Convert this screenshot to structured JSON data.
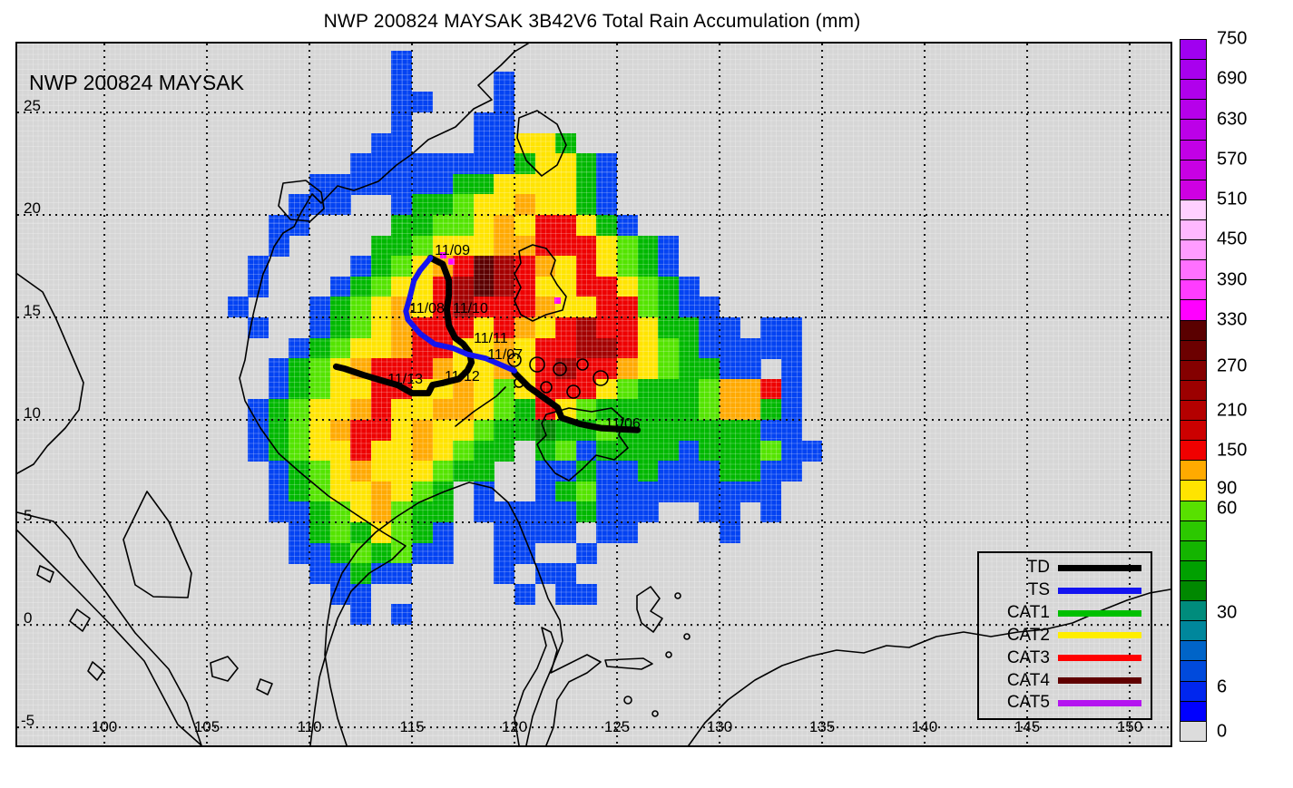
{
  "title": "NWP 200824 MAYSAK 3B42V6 Total Rain Accumulation (mm)",
  "map_label": "NWP 200824 MAYSAK",
  "axes": {
    "lon_min": 95.75,
    "lon_max": 151.99,
    "lat_min": -5.88,
    "lat_max": 28.36,
    "lon_ticks": [
      100,
      105,
      110,
      115,
      120,
      125,
      130,
      135,
      140,
      145,
      150
    ],
    "lat_ticks": [
      25,
      20,
      15,
      10,
      5,
      0,
      -5
    ]
  },
  "colorbar": {
    "cells": [
      "#a000f0",
      "#a800ee",
      "#b000ec",
      "#b600ea",
      "#bc00e8",
      "#c200e6",
      "#c800e4",
      "#ce00e2",
      "#ffd0ff",
      "#ffb8ff",
      "#ff9cff",
      "#ff70ff",
      "#ff3cff",
      "#ff00ff",
      "#5a0000",
      "#6c0000",
      "#840000",
      "#9c0000",
      "#b40000",
      "#cc0000",
      "#f00000",
      "#ffaa00",
      "#ffe400",
      "#58e000",
      "#2cc800",
      "#14b400",
      "#00a000",
      "#008800",
      "#008c7c",
      "#00879c",
      "#0064c8",
      "#004adc",
      "#0026ee",
      "#0000ff",
      "#dcdcdc"
    ],
    "ticks": [
      {
        "label": "750",
        "pos": 0
      },
      {
        "label": "690",
        "pos": 2
      },
      {
        "label": "630",
        "pos": 4
      },
      {
        "label": "570",
        "pos": 6
      },
      {
        "label": "510",
        "pos": 8
      },
      {
        "label": "450",
        "pos": 10
      },
      {
        "label": "390",
        "pos": 12
      },
      {
        "label": "330",
        "pos": 14
      },
      {
        "label": "270",
        "pos": 16.3
      },
      {
        "label": "210",
        "pos": 18.5
      },
      {
        "label": "150",
        "pos": 20.5
      },
      {
        "label": "90",
        "pos": 22.4
      },
      {
        "label": "60",
        "pos": 23.4
      },
      {
        "label": "30",
        "pos": 28.6
      },
      {
        "label": "6",
        "pos": 32.3
      },
      {
        "label": "0",
        "pos": 34.5
      }
    ]
  },
  "legend": {
    "items": [
      {
        "label": "TD",
        "color": "#000000"
      },
      {
        "label": "TS",
        "color": "#1414f0"
      },
      {
        "label": "CAT1",
        "color": "#00c000"
      },
      {
        "label": "CAT2",
        "color": "#ffee00"
      },
      {
        "label": "CAT3",
        "color": "#ff0000"
      },
      {
        "label": "CAT4",
        "color": "#600000"
      },
      {
        "label": "CAT5",
        "color": "#b414f0"
      }
    ]
  },
  "chart_data": {
    "type": "heatmap",
    "title": "NWP 200824 MAYSAK 3B42V6 Total Rain Accumulation (mm)",
    "units": "mm",
    "grid": {
      "lon_west": 106,
      "lat_north": 28,
      "cell_deg": 1,
      "rows": [
        "........b.....................",
        "........b....b................",
        "........bb...b................",
        "........b...bb................",
        ".......bb...bbyyg.............",
        "......bbbbbbbbgyygb...........",
        "....bbbbbbbggyyyygb...........",
        "...bbb..bgglyyoyygb...........",
        "..bb....ggllyoyrrygb..........",
        "..b....gglyyyoorrrylgb........",
        ".b....bglyorMRroyrylgb........",
        ".b...bglyyrRMRryyrrylgb.......",
        "b...bglyoyrRrrroyyrrlgbb......",
        ".b..bglyorrryroyrRrryggbb.bb..",
        "...bglyyorryyoyrrRRrylgbbbbb..",
        "..bglyorrroyyoyrRrroylggbb.b..",
        "..bglyyrryyoylyrrrylgggloorb..",
        ".bglyyoryyooylgrylgggggloogb..",
        ".bglyorryoyylggGgglgggggggbb..",
        ".bglyyryyoylgg.glbggggbggglbb.",
        "..bglyoyyylgg..bbgbbgbbbggbb..",
        "..bglyyoylg.b..bglbbbbbbbbb...",
        "..bbglyolgg.bbbbbgbbb..bb.b...",
        "...bglgylgb..bbbb.bb....b.....",
        "...bbglglbb..bb..b............",
        "....bbgbb....b.bb.............",
        ".....bb.......b.bb............",
        "......b.b.....................",
        "..............................",
        ".............................."
      ]
    },
    "palette": {
      "b": "#0443f2",
      "g": "#00b800",
      "G": "#008400",
      "l": "#54e400",
      "y": "#ffe402",
      "o": "#ffaa02",
      "r": "#ee0202",
      "R": "#a40000",
      "M": "#5c0000"
    },
    "magenta_specks": {
      "color": "#ff00ff",
      "points": [
        [
          116.5,
          18.05
        ],
        [
          116.9,
          17.75
        ],
        [
          122.1,
          15.85
        ]
      ]
    },
    "track": {
      "segments": [
        {
          "intensity": "TD",
          "color": "#000000",
          "points": [
            [
              126.0,
              9.5
            ],
            [
              124.2,
              9.6
            ],
            [
              123.2,
              9.8
            ],
            [
              122.3,
              10.1
            ],
            [
              122.1,
              10.6
            ],
            [
              121.4,
              11.1
            ],
            [
              120.7,
              11.6
            ],
            [
              120.0,
              12.3
            ]
          ]
        },
        {
          "intensity": "TD",
          "color": "#000000",
          "points": [
            [
              115.9,
              17.9
            ],
            [
              116.5,
              17.6
            ],
            [
              116.8,
              16.8
            ],
            [
              116.8,
              16.1
            ],
            [
              116.7,
              15.4
            ],
            [
              116.8,
              14.6
            ],
            [
              117.1,
              14.0
            ],
            [
              117.5,
              13.7
            ],
            [
              117.8,
              13.3
            ],
            [
              117.9,
              12.8
            ],
            [
              117.7,
              12.4
            ],
            [
              117.3,
              12.0
            ],
            [
              116.5,
              11.8
            ],
            [
              116.0,
              11.7
            ],
            [
              115.8,
              11.3
            ],
            [
              115.0,
              11.3
            ],
            [
              114.3,
              11.7
            ],
            [
              113.6,
              11.9
            ],
            [
              112.6,
              12.2
            ],
            [
              111.7,
              12.5
            ],
            [
              111.3,
              12.6
            ]
          ]
        },
        {
          "intensity": "TS",
          "color": "#1414f0",
          "points": [
            [
              120.0,
              12.4
            ],
            [
              118.6,
              13.0
            ],
            [
              117.7,
              13.2
            ],
            [
              117.0,
              13.5
            ],
            [
              116.1,
              13.7
            ],
            [
              115.4,
              14.2
            ],
            [
              114.8,
              14.9
            ],
            [
              114.7,
              15.3
            ],
            [
              114.9,
              16.0
            ],
            [
              115.1,
              16.8
            ],
            [
              115.4,
              17.3
            ],
            [
              115.9,
              17.9
            ]
          ]
        }
      ],
      "date_labels": [
        {
          "text": "11/09",
          "lon": 116.11,
          "lat": 18.63
        },
        {
          "text": "11/08",
          "lon": 114.87,
          "lat": 15.8
        },
        {
          "text": "11/10",
          "lon": 116.99,
          "lat": 15.8
        },
        {
          "text": "11/11",
          "lon": 118.01,
          "lat": 14.34
        },
        {
          "text": "11/07",
          "lon": 118.68,
          "lat": 13.54
        },
        {
          "text": "11/12",
          "lon": 116.59,
          "lat": 12.48
        },
        {
          "text": "11/13",
          "lon": 113.81,
          "lat": 12.35
        },
        {
          "text": "11/06",
          "lon": 124.42,
          "lat": 10.18
        }
      ]
    }
  }
}
